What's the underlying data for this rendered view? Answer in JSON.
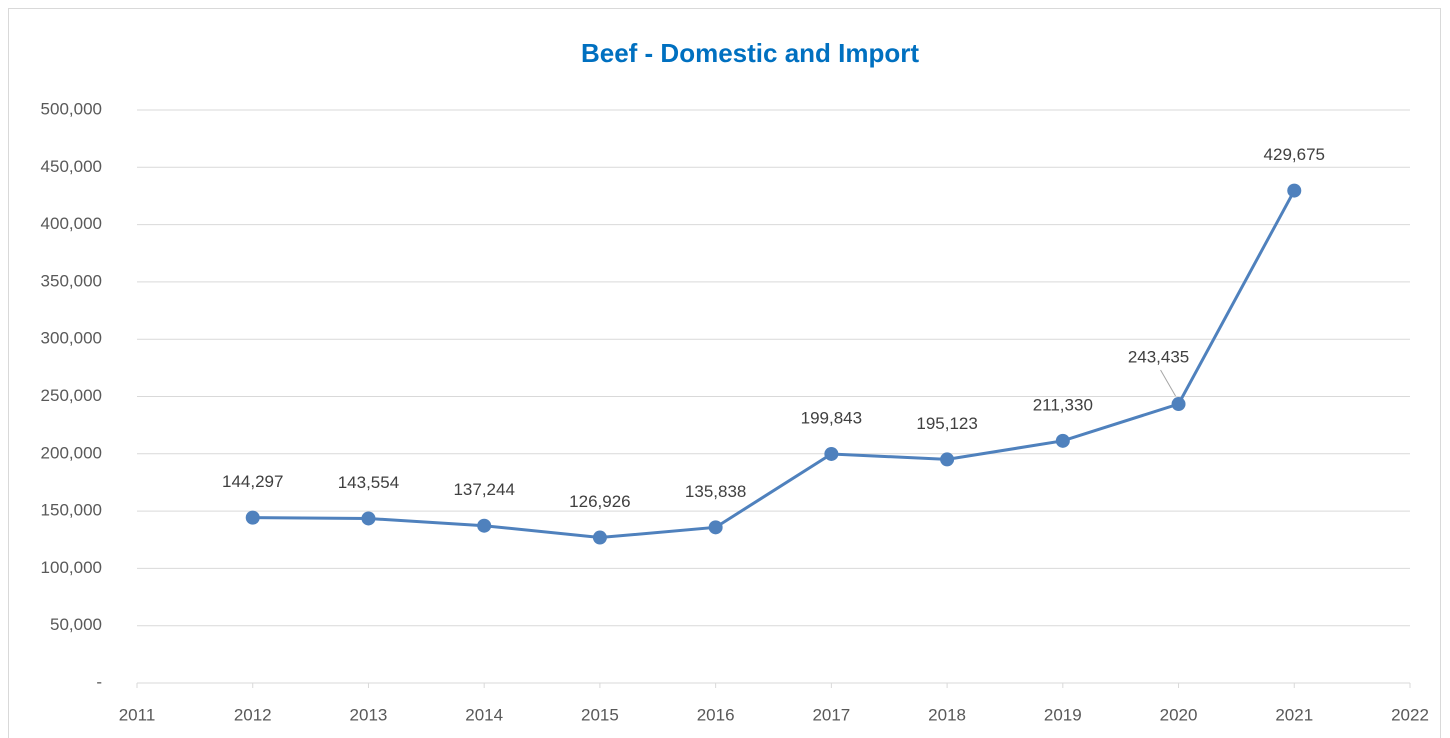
{
  "chart_data": {
    "type": "line",
    "title": "Beef - Domestic and Import",
    "x": [
      2012,
      2013,
      2014,
      2015,
      2016,
      2017,
      2018,
      2019,
      2020,
      2021
    ],
    "series": [
      {
        "name": "Beef",
        "color": "#4f81bd",
        "values": [
          144297,
          143554,
          137244,
          126926,
          135838,
          199843,
          195123,
          211330,
          243435,
          429675
        ],
        "value_labels": [
          "144,297",
          "143,554",
          "137,244",
          "126,926",
          "135,838",
          "199,843",
          "195,123",
          "211,330",
          "243,435",
          "429,675"
        ]
      }
    ],
    "xlim": [
      2011,
      2022
    ],
    "xticks": [
      2011,
      2012,
      2013,
      2014,
      2015,
      2016,
      2017,
      2018,
      2019,
      2020,
      2021,
      2022
    ],
    "ylim": [
      0,
      500000
    ],
    "yticks": [
      {
        "value": 0,
        "label": "-"
      },
      {
        "value": 50000,
        "label": "50,000"
      },
      {
        "value": 100000,
        "label": "100,000"
      },
      {
        "value": 150000,
        "label": "150,000"
      },
      {
        "value": 200000,
        "label": "200,000"
      },
      {
        "value": 250000,
        "label": "250,000"
      },
      {
        "value": 300000,
        "label": "300,000"
      },
      {
        "value": 350000,
        "label": "350,000"
      },
      {
        "value": 400000,
        "label": "400,000"
      },
      {
        "value": 450000,
        "label": "450,000"
      },
      {
        "value": 500000,
        "label": "500,000"
      }
    ],
    "grid": true
  }
}
